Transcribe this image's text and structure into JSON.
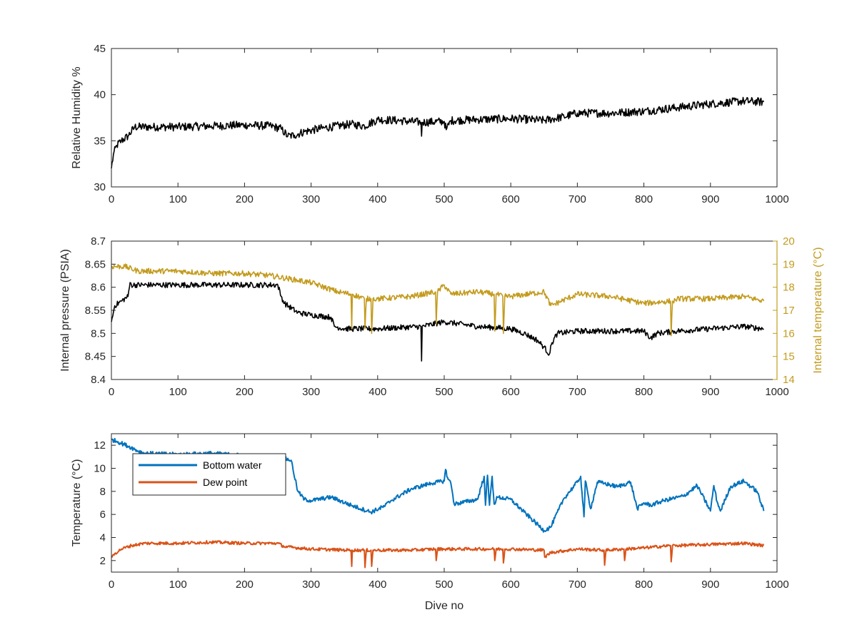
{
  "chart_data": [
    {
      "type": "line",
      "ylabel": "Relative Humidity %",
      "xlim": [
        0,
        1000
      ],
      "ylim": [
        30,
        45
      ],
      "xticks": [
        0,
        100,
        200,
        300,
        400,
        500,
        600,
        700,
        800,
        900,
        1000
      ],
      "yticks": [
        30,
        35,
        40,
        45
      ],
      "series": [
        {
          "color": "#000000",
          "noise": 0.45,
          "x": [
            0,
            3,
            8,
            15,
            25,
            35,
            60,
            100,
            150,
            200,
            240,
            255,
            265,
            275,
            290,
            320,
            360,
            380,
            400,
            430,
            465,
            466,
            467,
            500,
            503,
            510,
            550,
            600,
            650,
            680,
            700,
            750,
            800,
            850,
            900,
            950,
            980
          ],
          "y": [
            32.0,
            33.5,
            34.5,
            35.0,
            35.5,
            36.5,
            36.5,
            36.5,
            36.6,
            36.7,
            36.6,
            36.3,
            35.5,
            35.6,
            36.0,
            36.4,
            36.8,
            36.6,
            37.3,
            37.2,
            37.0,
            35.5,
            37.0,
            37.1,
            36.2,
            37.2,
            37.3,
            37.4,
            37.2,
            37.6,
            38.0,
            38.0,
            38.2,
            38.6,
            39.0,
            39.3,
            39.2
          ]
        }
      ]
    },
    {
      "type": "line",
      "ylabel": "Internal pressure (PSIA)",
      "y2label": "Internal temperature (°C)",
      "xlim": [
        0,
        1000
      ],
      "ylim": [
        8.4,
        8.7
      ],
      "y2lim": [
        14,
        20
      ],
      "xticks": [
        0,
        100,
        200,
        300,
        400,
        500,
        600,
        700,
        800,
        900,
        1000
      ],
      "yticks": [
        8.4,
        8.45,
        8.5,
        8.55,
        8.6,
        8.65,
        8.7
      ],
      "y2ticks": [
        14,
        15,
        16,
        17,
        18,
        19,
        20
      ],
      "y2color": "#C39B1E",
      "series": [
        {
          "axis": "left",
          "color": "#000000",
          "noise": 0.006,
          "x": [
            0,
            5,
            15,
            25,
            28,
            30,
            100,
            200,
            250,
            255,
            260,
            280,
            300,
            330,
            335,
            350,
            400,
            465,
            466,
            467,
            500,
            550,
            600,
            620,
            640,
            650,
            658,
            662,
            670,
            700,
            750,
            800,
            810,
            820,
            850,
            900,
            950,
            980
          ],
          "y": [
            8.525,
            8.56,
            8.57,
            8.58,
            8.61,
            8.605,
            8.605,
            8.605,
            8.605,
            8.58,
            8.565,
            8.545,
            8.54,
            8.535,
            8.515,
            8.51,
            8.51,
            8.515,
            8.44,
            8.515,
            8.525,
            8.515,
            8.51,
            8.5,
            8.485,
            8.47,
            8.455,
            8.48,
            8.5,
            8.505,
            8.505,
            8.505,
            8.49,
            8.5,
            8.505,
            8.51,
            8.515,
            8.51
          ]
        },
        {
          "axis": "right",
          "color": "#C39B1E",
          "noise": 0.12,
          "x": [
            0,
            20,
            40,
            100,
            150,
            200,
            240,
            280,
            300,
            340,
            360,
            361,
            362,
            380,
            381,
            383,
            390,
            391,
            393,
            400,
            450,
            487,
            488,
            490,
            500,
            510,
            550,
            575,
            576,
            578,
            588,
            589,
            591,
            600,
            650,
            660,
            700,
            750,
            800,
            840,
            841,
            843,
            850,
            900,
            950,
            980
          ],
          "y": [
            18.9,
            18.9,
            18.7,
            18.7,
            18.6,
            18.6,
            18.5,
            18.3,
            18.2,
            17.8,
            17.7,
            16.2,
            17.7,
            17.5,
            16.2,
            17.5,
            17.5,
            16.0,
            17.5,
            17.5,
            17.6,
            17.8,
            16.4,
            17.8,
            18.1,
            17.7,
            17.8,
            17.7,
            16.1,
            17.7,
            17.6,
            16.0,
            17.6,
            17.6,
            17.8,
            17.2,
            17.7,
            17.6,
            17.3,
            17.4,
            15.9,
            17.4,
            17.5,
            17.5,
            17.6,
            17.4
          ]
        }
      ]
    },
    {
      "type": "line",
      "xlabel": "Dive no",
      "ylabel": "Temperature (°C)",
      "xlim": [
        0,
        1000
      ],
      "ylim": [
        1,
        13
      ],
      "xticks": [
        0,
        100,
        200,
        300,
        400,
        500,
        600,
        700,
        800,
        900,
        1000
      ],
      "yticks": [
        2,
        4,
        6,
        8,
        10,
        12
      ],
      "legend": "upper-left",
      "series": [
        {
          "name": "Bottom water",
          "color": "#0072BD",
          "noise": 0.18,
          "x": [
            0,
            10,
            30,
            40,
            50,
            100,
            150,
            200,
            250,
            270,
            280,
            290,
            300,
            330,
            360,
            390,
            410,
            420,
            450,
            480,
            500,
            502,
            505,
            510,
            515,
            550,
            560,
            562,
            565,
            568,
            572,
            575,
            580,
            600,
            620,
            650,
            660,
            680,
            700,
            705,
            710,
            712,
            720,
            730,
            740,
            760,
            780,
            790,
            800,
            810,
            830,
            860,
            880,
            900,
            905,
            910,
            915,
            930,
            950,
            970,
            980
          ],
          "y": [
            12.5,
            12.3,
            11.8,
            11.5,
            11.3,
            11.2,
            11.3,
            11.1,
            11.0,
            10.7,
            8.0,
            7.3,
            7.2,
            7.5,
            6.8,
            6.2,
            6.7,
            7.2,
            8.2,
            8.7,
            8.9,
            9.9,
            9.2,
            8.7,
            6.9,
            7.3,
            9.3,
            6.8,
            9.4,
            6.8,
            9.3,
            6.9,
            7.5,
            7.3,
            6.2,
            4.6,
            4.9,
            7.4,
            8.8,
            9.3,
            5.8,
            8.9,
            6.5,
            8.8,
            8.7,
            8.4,
            8.8,
            6.5,
            7.0,
            6.8,
            7.2,
            7.6,
            8.5,
            6.3,
            8.5,
            7.1,
            6.3,
            8.4,
            8.9,
            8.0,
            6.3
          ]
        },
        {
          "name": "Dew point",
          "color": "#D95319",
          "noise": 0.13,
          "x": [
            0,
            5,
            15,
            30,
            50,
            100,
            150,
            200,
            250,
            260,
            300,
            360,
            361,
            362,
            380,
            381,
            383,
            390,
            391,
            393,
            400,
            450,
            487,
            488,
            490,
            500,
            550,
            575,
            576,
            578,
            588,
            589,
            591,
            600,
            650,
            651,
            660,
            700,
            740,
            741,
            743,
            770,
            771,
            773,
            800,
            840,
            841,
            843,
            850,
            900,
            950,
            980
          ],
          "y": [
            2.3,
            2.6,
            3.0,
            3.3,
            3.5,
            3.5,
            3.6,
            3.5,
            3.5,
            3.2,
            3.0,
            2.9,
            1.5,
            2.9,
            2.9,
            1.4,
            2.9,
            2.9,
            1.5,
            2.9,
            2.9,
            2.9,
            3.0,
            2.0,
            3.0,
            3.0,
            3.0,
            3.0,
            2.0,
            3.0,
            3.0,
            1.8,
            3.0,
            3.0,
            2.9,
            2.3,
            2.7,
            3.0,
            2.9,
            1.6,
            2.9,
            3.0,
            2.0,
            3.0,
            3.1,
            3.3,
            1.9,
            3.3,
            3.3,
            3.4,
            3.5,
            3.3
          ]
        }
      ]
    }
  ]
}
